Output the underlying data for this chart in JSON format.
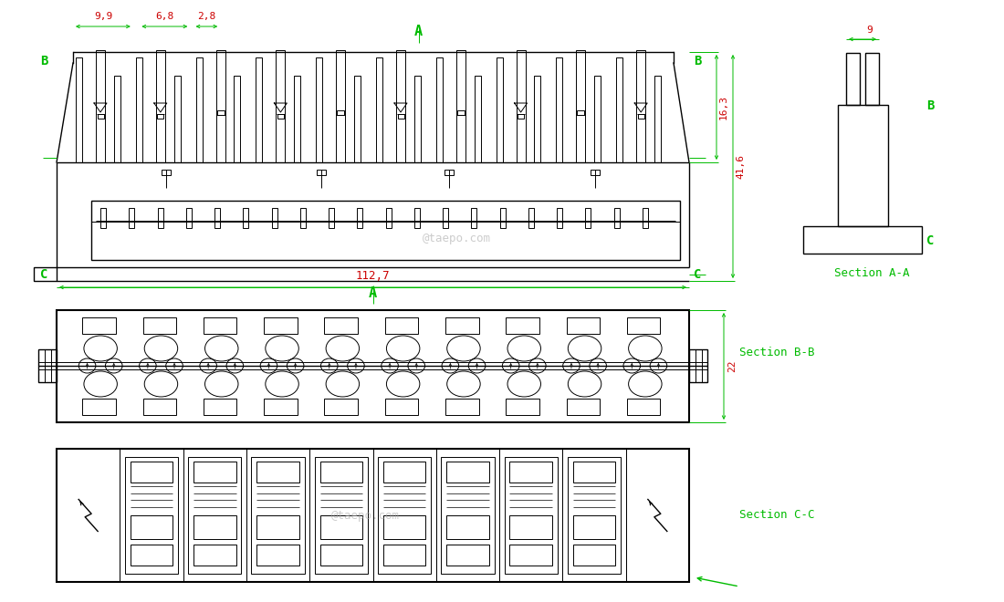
{
  "bg_color": "#ffffff",
  "lc": "#000000",
  "gc": "#00bb00",
  "rc": "#cc0000",
  "fig_width": 11.0,
  "fig_height": 6.6,
  "dims": {
    "d1": "9,9",
    "d2": "6,8",
    "d3": "2,8",
    "d4": "16,3",
    "d5": "41,6",
    "d6": "9",
    "d7": "112,7",
    "d8": "22"
  },
  "watermark": "@taepo.com"
}
